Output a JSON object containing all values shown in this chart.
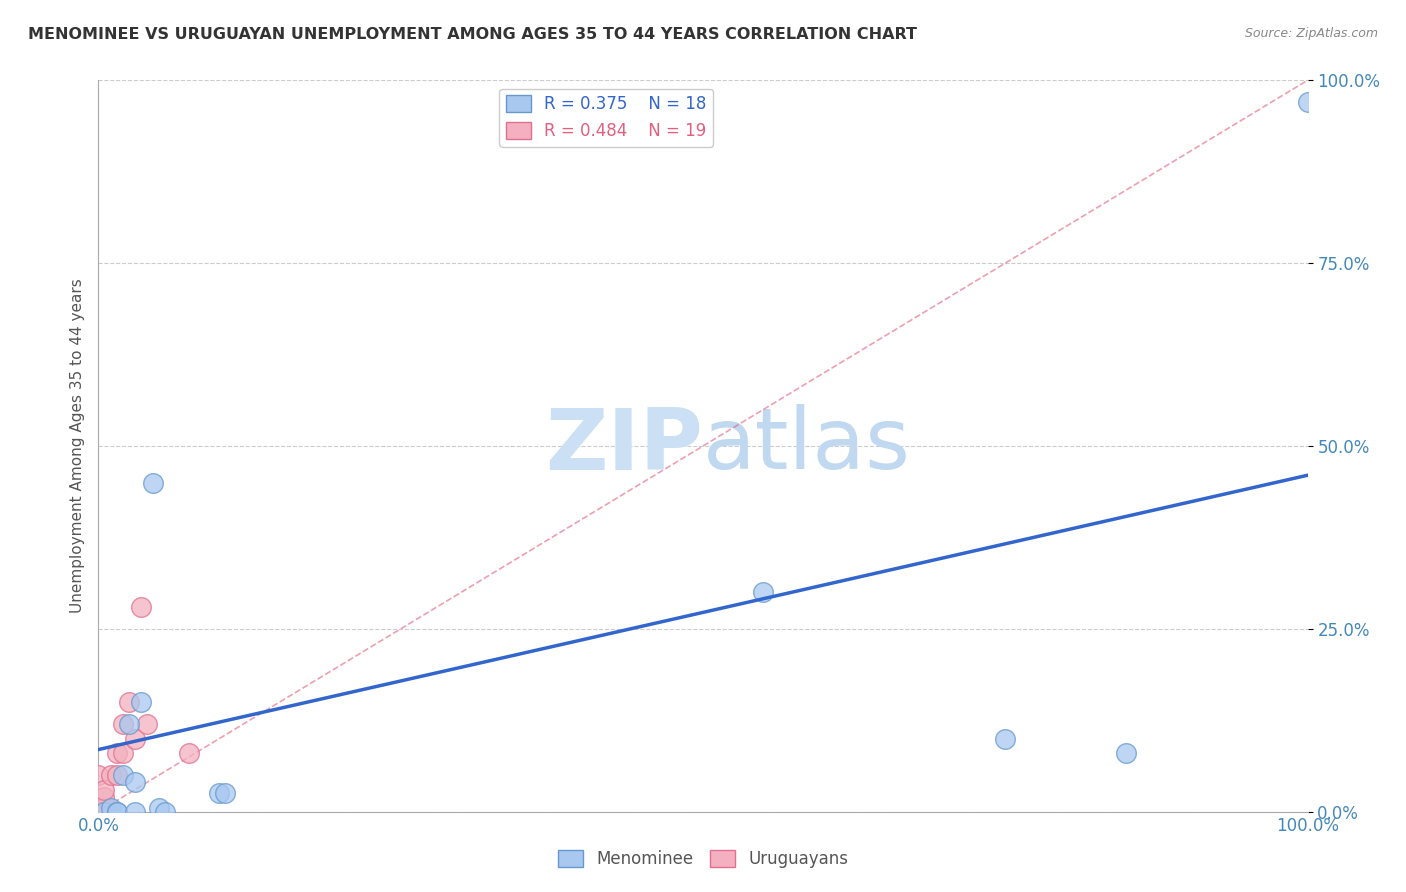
{
  "title": "MENOMINEE VS URUGUAYAN UNEMPLOYMENT AMONG AGES 35 TO 44 YEARS CORRELATION CHART",
  "source": "Source: ZipAtlas.com",
  "ylabel": "Unemployment Among Ages 35 to 44 years",
  "ytick_values": [
    0,
    25,
    50,
    75,
    100
  ],
  "legend_r_menominee": "R = 0.375",
  "legend_n_menominee": "N = 18",
  "legend_r_uruguayan": "R = 0.484",
  "legend_n_uruguayan": "N = 19",
  "menominee_color": "#a8c8f0",
  "menominee_edge": "#6699cc",
  "uruguayan_color": "#f4b0c0",
  "uruguayan_edge": "#e07090",
  "trend_menominee_color": "#3366cc",
  "trend_uruguayan_color": "#e06080",
  "watermark_zip_color": "#cce0f5",
  "watermark_atlas_color": "#c0d8f0",
  "background_color": "#ffffff",
  "grid_color": "#cccccc",
  "menominee_x": [
    0.5,
    1.0,
    1.5,
    2.0,
    2.5,
    3.0,
    3.5,
    4.5,
    5.0,
    5.5,
    10.0,
    10.5,
    55.0,
    75.0,
    85.0,
    100.0,
    1.5,
    3.0
  ],
  "menominee_y": [
    0.0,
    0.5,
    0.0,
    5.0,
    12.0,
    4.0,
    15.0,
    45.0,
    0.5,
    0.0,
    2.5,
    2.5,
    30.0,
    10.0,
    8.0,
    97.0,
    0.0,
    0.0
  ],
  "uruguayan_x": [
    0.0,
    0.0,
    0.0,
    0.0,
    0.0,
    0.0,
    0.5,
    0.5,
    0.5,
    1.0,
    1.5,
    1.5,
    2.0,
    2.0,
    2.5,
    3.0,
    3.5,
    4.0,
    7.5
  ],
  "uruguayan_y": [
    0.0,
    0.0,
    0.0,
    0.0,
    0.0,
    5.0,
    0.5,
    2.0,
    3.0,
    5.0,
    5.0,
    8.0,
    8.0,
    12.0,
    15.0,
    10.0,
    28.0,
    12.0,
    8.0
  ],
  "menominee_trend_x": [
    0,
    100
  ],
  "menominee_trend_y": [
    8.5,
    46.0
  ],
  "uruguayan_trend_x": [
    0,
    100
  ],
  "uruguayan_trend_y": [
    0.0,
    100.0
  ],
  "marker_size": 200,
  "xlim": [
    0,
    100
  ],
  "ylim": [
    0,
    100
  ]
}
